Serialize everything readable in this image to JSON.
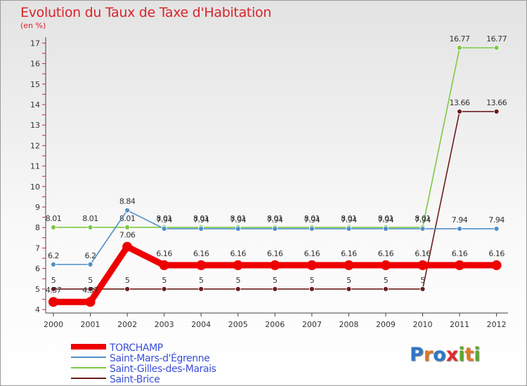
{
  "header": {
    "title": "Evolution du Taux de Taxe d'Habitation",
    "subtitle": "(en %)"
  },
  "branding": {
    "letters": [
      "P",
      "r",
      "o",
      "x",
      "i",
      "t",
      "i"
    ],
    "letter_colors": [
      "#2f76c8",
      "#e3781e",
      "#2f76c8",
      "#e32a2a",
      "#5aa82b",
      "#e3781e",
      "#5aa82b"
    ]
  },
  "chart_data": {
    "type": "line",
    "title": "Evolution du Taux de Taxe d'Habitation",
    "ylabel": "(en %)",
    "xlabel": "",
    "categories": [
      "2000",
      "2001",
      "2002",
      "2003",
      "2004",
      "2005",
      "2006",
      "2007",
      "2008",
      "2009",
      "2010",
      "2011",
      "2012"
    ],
    "ylim": [
      4,
      17
    ],
    "yticks": [
      "4",
      "5",
      "6",
      "7",
      "8",
      "9",
      "10",
      "11",
      "12",
      "13",
      "14",
      "15",
      "16",
      "17"
    ],
    "legend_position": "bottom-left",
    "series": [
      {
        "name": "Saint-Brice",
        "color": "#6b1d1d",
        "emphasis": false,
        "values": [
          5,
          5,
          5,
          5,
          5,
          5,
          5,
          5,
          5,
          5,
          5,
          13.66,
          13.66
        ],
        "labels": [
          "5",
          "5",
          "5",
          "5",
          "5",
          "5",
          "5",
          "5",
          "5",
          "5",
          "5",
          "13.66",
          "13.66"
        ]
      },
      {
        "name": "Saint-Gilles-des-Marais",
        "color": "#7ec943",
        "emphasis": false,
        "values": [
          8.01,
          8.01,
          8.01,
          8.01,
          8.01,
          8.01,
          8.01,
          8.01,
          8.01,
          8.01,
          8.01,
          16.77,
          16.77
        ],
        "labels": [
          "8.01",
          "8.01",
          "8.01",
          "8.01",
          "8.01",
          "8.01",
          "8.01",
          "8.01",
          "8.01",
          "8.01",
          "8.01",
          "16.77",
          "16.77"
        ]
      },
      {
        "name": "Saint-Mars-d'Égrenne",
        "color": "#4f8fc9",
        "emphasis": false,
        "values": [
          6.2,
          6.2,
          8.84,
          7.94,
          7.94,
          7.94,
          7.94,
          7.94,
          7.94,
          7.94,
          7.94,
          7.94,
          7.94
        ],
        "labels": [
          "6.2",
          "6.2",
          "8.84",
          "7.94",
          "7.94",
          "7.94",
          "7.94",
          "7.94",
          "7.94",
          "7.94",
          "7.94",
          "7.94",
          "7.94"
        ]
      },
      {
        "name": "TORCHAMP",
        "color": "#ee0000",
        "emphasis": true,
        "values": [
          4.37,
          4.37,
          7.06,
          6.16,
          6.16,
          6.16,
          6.16,
          6.16,
          6.16,
          6.16,
          6.16,
          6.16,
          6.16
        ],
        "labels": [
          "4.37",
          "4.37",
          "7.06",
          "6.16",
          "6.16",
          "6.16",
          "6.16",
          "6.16",
          "6.16",
          "6.16",
          "6.16",
          "6.16",
          "6.16"
        ]
      }
    ],
    "legend_order": [
      "TORCHAMP",
      "Saint-Mars-d'Égrenne",
      "Saint-Gilles-des-Marais",
      "Saint-Brice"
    ]
  }
}
